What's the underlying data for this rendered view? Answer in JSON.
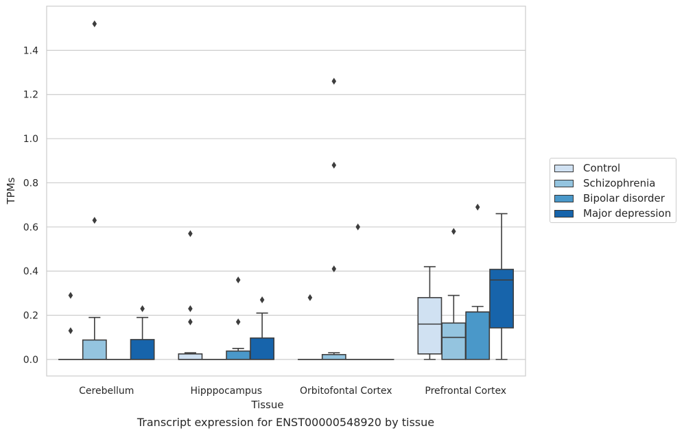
{
  "chart_data": {
    "type": "boxplot",
    "xlabel": "Tissue",
    "ylabel": "TPMs",
    "categories": [
      "Cerebellum",
      "Hipppocampus",
      "Orbitofontal Cortex",
      "Prefrontal Cortex"
    ],
    "y_ticks": [
      "0.0",
      "0.2",
      "0.4",
      "0.6",
      "0.8",
      "1.0",
      "1.2",
      "1.4"
    ],
    "ylim": [
      -0.075,
      1.6
    ],
    "grid": true,
    "legend_placement": "outside-right",
    "series": [
      {
        "name": "Control",
        "color": "#d0e1f2",
        "boxes": [
          {
            "q1": 0,
            "median": 0,
            "q3": 0,
            "whislo": 0,
            "whishi": 0,
            "fliers": [
              0.29,
              0.13
            ]
          },
          {
            "q1": 0,
            "median": 0,
            "q3": 0.025,
            "whislo": 0,
            "whishi": 0.03,
            "fliers": [
              0.57,
              0.23,
              0.17
            ]
          },
          {
            "q1": 0,
            "median": 0,
            "q3": 0,
            "whislo": 0,
            "whishi": 0,
            "fliers": [
              0.28
            ]
          },
          {
            "q1": 0.025,
            "median": 0.16,
            "q3": 0.28,
            "whislo": 0,
            "whishi": 0.42,
            "fliers": []
          }
        ]
      },
      {
        "name": "Schizophrenia",
        "color": "#94c4df",
        "boxes": [
          {
            "q1": 0,
            "median": 0,
            "q3": 0.088,
            "whislo": 0,
            "whishi": 0.19,
            "fliers": [
              1.52,
              0.63
            ]
          },
          {
            "q1": 0,
            "median": 0,
            "q3": 0,
            "whislo": 0,
            "whishi": 0,
            "fliers": []
          },
          {
            "q1": 0,
            "median": 0,
            "q3": 0.022,
            "whislo": 0,
            "whishi": 0.03,
            "fliers": [
              1.26,
              0.88,
              0.41
            ]
          },
          {
            "q1": 0,
            "median": 0.1,
            "q3": 0.165,
            "whislo": 0,
            "whishi": 0.29,
            "fliers": [
              0.58
            ]
          }
        ]
      },
      {
        "name": "Bipolar disorder",
        "color": "#4a98c9",
        "boxes": [
          {
            "q1": 0,
            "median": 0,
            "q3": 0,
            "whislo": 0,
            "whishi": 0,
            "fliers": []
          },
          {
            "q1": 0,
            "median": 0,
            "q3": 0.038,
            "whislo": 0,
            "whishi": 0.05,
            "fliers": [
              0.36,
              0.17
            ]
          },
          {
            "q1": 0,
            "median": 0,
            "q3": 0,
            "whislo": 0,
            "whishi": 0,
            "fliers": [
              0.6
            ]
          },
          {
            "q1": 0,
            "median": 0.215,
            "q3": 0.215,
            "whislo": 0,
            "whishi": 0.24,
            "fliers": [
              0.69
            ]
          }
        ]
      },
      {
        "name": "Major depression",
        "color": "#1764ab",
        "boxes": [
          {
            "q1": 0,
            "median": 0,
            "q3": 0.09,
            "whislo": 0,
            "whishi": 0.19,
            "fliers": [
              0.23
            ]
          },
          {
            "q1": 0,
            "median": 0,
            "q3": 0.097,
            "whislo": 0,
            "whishi": 0.21,
            "fliers": [
              0.27
            ]
          },
          {
            "q1": 0,
            "median": 0,
            "q3": 0,
            "whislo": 0,
            "whishi": 0,
            "fliers": []
          },
          {
            "q1": 0.143,
            "median": 0.36,
            "q3": 0.408,
            "whislo": 0,
            "whishi": 0.66,
            "fliers": []
          }
        ]
      }
    ]
  },
  "caption": "Transcript expression for ENST00000548920 by tissue"
}
